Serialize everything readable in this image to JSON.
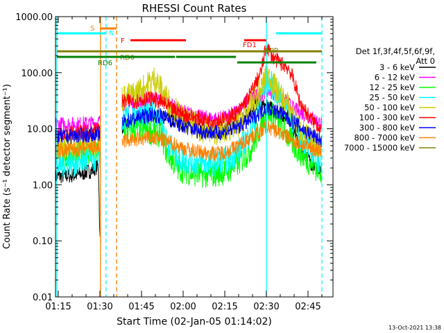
{
  "chart_data": {
    "type": "line",
    "title": "RHESSI Count Rates",
    "xlabel": "Start Time (02-Jan-05 01:14:02)",
    "ylabel": "Count Rate (s⁻¹ detector segment⁻¹)",
    "y_scale": "log",
    "ylim": [
      0.01,
      1000
    ],
    "xlim_minutes": [
      0,
      100
    ],
    "x_ticks": [
      "01:15",
      "01:30",
      "01:45",
      "02:00",
      "02:15",
      "02:30",
      "02:45"
    ],
    "y_ticks": [
      "0.01",
      "0.10",
      "1.00",
      "10.00",
      "100.00",
      "1000.00"
    ],
    "footer_date": "13-Oct-2021 13:38",
    "legend": {
      "header_line1": "Det 1f,3f,4f,5f,6f,9f,",
      "header_line2": "Att 0",
      "entries": [
        {
          "label": "3 - 6 keV",
          "color": "#000000"
        },
        {
          "label": "6 - 12 keV",
          "color": "#ff00ff"
        },
        {
          "label": "12 - 25 keV",
          "color": "#00ff00"
        },
        {
          "label": "25 - 50 keV",
          "color": "#00ffff"
        },
        {
          "label": "50 - 100 keV",
          "color": "#cccc00"
        },
        {
          "label": "100 - 300 keV",
          "color": "#ff0000"
        },
        {
          "label": "300 - 800 keV",
          "color": "#0000ff"
        },
        {
          "label": "800 - 7000 keV",
          "color": "#ff8000"
        },
        {
          "label": "7000 - 15000 keV",
          "color": "#808000"
        }
      ]
    },
    "flags": [
      {
        "label": "S",
        "color": "#ff8000"
      },
      {
        "label": "N",
        "color": "#00ffff"
      },
      {
        "label": "F",
        "color": "#ff0000"
      },
      {
        "label": "FD1",
        "color": "#ff0000"
      },
      {
        "label": "RD0",
        "color": "#808000"
      },
      {
        "label": "RD6",
        "color": "#008000"
      },
      {
        "label": "FPP",
        "color": "#808000"
      }
    ],
    "vertical_markers": [
      {
        "t": 0.5,
        "color": "#00ffff",
        "style": "solid"
      },
      {
        "t": 16.2,
        "color": "#ff8000",
        "style": "solid"
      },
      {
        "t": 18.2,
        "color": "#00ffff",
        "style": "dashed"
      },
      {
        "t": 22.0,
        "color": "#ff8000",
        "style": "dashed"
      },
      {
        "t": 76.0,
        "color": "#00ffff",
        "style": "solid"
      },
      {
        "t": 96.0,
        "color": "#00ffff",
        "style": "dashed"
      }
    ],
    "series": [
      {
        "name": "3 - 6 keV",
        "color": "#000000",
        "points": [
          [
            0,
            1.4
          ],
          [
            8,
            1.5
          ],
          [
            13,
            1.8
          ],
          [
            15.5,
            2.2
          ],
          [
            16,
            0.1
          ],
          [
            24,
            11
          ],
          [
            30,
            14
          ],
          [
            34,
            17
          ],
          [
            38,
            16
          ],
          [
            42,
            14
          ],
          [
            46,
            12
          ],
          [
            52,
            10
          ],
          [
            58,
            9
          ],
          [
            62,
            10
          ],
          [
            66,
            12
          ],
          [
            69,
            18
          ],
          [
            72,
            28
          ],
          [
            75,
            25
          ],
          [
            77,
            24
          ],
          [
            80,
            20
          ],
          [
            84,
            16
          ],
          [
            88,
            5
          ],
          [
            92,
            2.5
          ],
          [
            96,
            1.5
          ]
        ]
      },
      {
        "name": "6 - 12 keV",
        "color": "#ff00ff",
        "points": [
          [
            0,
            12
          ],
          [
            8,
            12
          ],
          [
            13,
            12.5
          ],
          [
            15.5,
            13
          ],
          [
            24,
            28
          ],
          [
            30,
            30
          ],
          [
            34,
            34
          ],
          [
            38,
            35
          ],
          [
            42,
            25
          ],
          [
            46,
            20
          ],
          [
            52,
            16
          ],
          [
            58,
            15
          ],
          [
            62,
            16
          ],
          [
            66,
            22
          ],
          [
            70,
            35
          ],
          [
            74,
            40
          ],
          [
            76,
            50
          ],
          [
            78,
            45
          ],
          [
            82,
            35
          ],
          [
            86,
            22
          ],
          [
            90,
            18
          ],
          [
            94,
            14
          ],
          [
            96,
            12
          ]
        ]
      },
      {
        "name": "12 - 25 keV",
        "color": "#00ff00",
        "points": [
          [
            0,
            3
          ],
          [
            8,
            3.5
          ],
          [
            13,
            3.7
          ],
          [
            15.5,
            4
          ],
          [
            24,
            10
          ],
          [
            30,
            10
          ],
          [
            34,
            9
          ],
          [
            38,
            8
          ],
          [
            40,
            4
          ],
          [
            44,
            2
          ],
          [
            50,
            1.6
          ],
          [
            56,
            1.5
          ],
          [
            62,
            1.8
          ],
          [
            66,
            2.5
          ],
          [
            70,
            4
          ],
          [
            74,
            11
          ],
          [
            76,
            22
          ],
          [
            78,
            18
          ],
          [
            82,
            10
          ],
          [
            86,
            5
          ],
          [
            90,
            3
          ],
          [
            94,
            2
          ],
          [
            96,
            1.8
          ]
        ]
      },
      {
        "name": "25 - 50 keV",
        "color": "#00ffff",
        "points": [
          [
            0,
            2.2
          ],
          [
            8,
            2.5
          ],
          [
            13,
            2.8
          ],
          [
            15.5,
            3
          ],
          [
            24,
            14
          ],
          [
            30,
            16
          ],
          [
            34,
            20
          ],
          [
            38,
            18
          ],
          [
            40,
            6
          ],
          [
            44,
            3
          ],
          [
            50,
            2.5
          ],
          [
            56,
            2.4
          ],
          [
            62,
            2.8
          ],
          [
            66,
            4
          ],
          [
            70,
            8
          ],
          [
            73,
            20
          ],
          [
            76,
            80
          ],
          [
            78,
            60
          ],
          [
            80,
            40
          ],
          [
            84,
            20
          ],
          [
            88,
            8
          ],
          [
            92,
            4
          ],
          [
            96,
            2.5
          ]
        ]
      },
      {
        "name": "50 - 100 keV",
        "color": "#cccc00",
        "points": [
          [
            0,
            5
          ],
          [
            8,
            5.5
          ],
          [
            13,
            5.8
          ],
          [
            15.5,
            6
          ],
          [
            24,
            35
          ],
          [
            28,
            40
          ],
          [
            32,
            55
          ],
          [
            36,
            80
          ],
          [
            38,
            50
          ],
          [
            42,
            25
          ],
          [
            46,
            15
          ],
          [
            52,
            10
          ],
          [
            58,
            9
          ],
          [
            62,
            10
          ],
          [
            66,
            12
          ],
          [
            70,
            25
          ],
          [
            74,
            50
          ],
          [
            76,
            90
          ],
          [
            78,
            70
          ],
          [
            80,
            45
          ],
          [
            84,
            25
          ],
          [
            88,
            10
          ],
          [
            92,
            6
          ],
          [
            96,
            5
          ]
        ]
      },
      {
        "name": "100 - 300 keV",
        "color": "#ff0000",
        "points": [
          [
            0,
            8
          ],
          [
            8,
            8.5
          ],
          [
            13,
            9
          ],
          [
            15.5,
            9.5
          ],
          [
            24,
            30
          ],
          [
            30,
            32
          ],
          [
            34,
            35
          ],
          [
            38,
            30
          ],
          [
            42,
            22
          ],
          [
            46,
            18
          ],
          [
            52,
            15
          ],
          [
            58,
            14
          ],
          [
            62,
            15
          ],
          [
            66,
            20
          ],
          [
            70,
            40
          ],
          [
            74,
            100
          ],
          [
            76,
            300
          ],
          [
            78,
            200
          ],
          [
            80,
            160
          ],
          [
            82,
            140
          ],
          [
            84,
            120
          ],
          [
            86,
            70
          ],
          [
            88,
            30
          ],
          [
            92,
            15
          ],
          [
            96,
            10
          ]
        ]
      },
      {
        "name": "300 - 800 keV",
        "color": "#0000ff",
        "points": [
          [
            0,
            7
          ],
          [
            8,
            7.5
          ],
          [
            13,
            7.8
          ],
          [
            15.5,
            8
          ],
          [
            24,
            13
          ],
          [
            30,
            16
          ],
          [
            34,
            18
          ],
          [
            38,
            17
          ],
          [
            42,
            14
          ],
          [
            46,
            11
          ],
          [
            52,
            9
          ],
          [
            58,
            8.5
          ],
          [
            62,
            9
          ],
          [
            66,
            11
          ],
          [
            70,
            14
          ],
          [
            74,
            20
          ],
          [
            76,
            24
          ],
          [
            78,
            22
          ],
          [
            82,
            18
          ],
          [
            86,
            13
          ],
          [
            90,
            9
          ],
          [
            94,
            7
          ],
          [
            96,
            6
          ]
        ]
      },
      {
        "name": "800 - 7000 keV",
        "color": "#ff8000",
        "points": [
          [
            0,
            4
          ],
          [
            8,
            4.2
          ],
          [
            13,
            4.5
          ],
          [
            15.5,
            4.8
          ],
          [
            24,
            6
          ],
          [
            30,
            6.5
          ],
          [
            34,
            6.8
          ],
          [
            38,
            6.5
          ],
          [
            42,
            5.5
          ],
          [
            46,
            4.5
          ],
          [
            52,
            3.8
          ],
          [
            58,
            3.6
          ],
          [
            62,
            4
          ],
          [
            66,
            5
          ],
          [
            70,
            7
          ],
          [
            74,
            9
          ],
          [
            76,
            11
          ],
          [
            78,
            10
          ],
          [
            82,
            8
          ],
          [
            86,
            6
          ],
          [
            90,
            5
          ],
          [
            94,
            4.2
          ],
          [
            96,
            4
          ]
        ]
      }
    ]
  }
}
